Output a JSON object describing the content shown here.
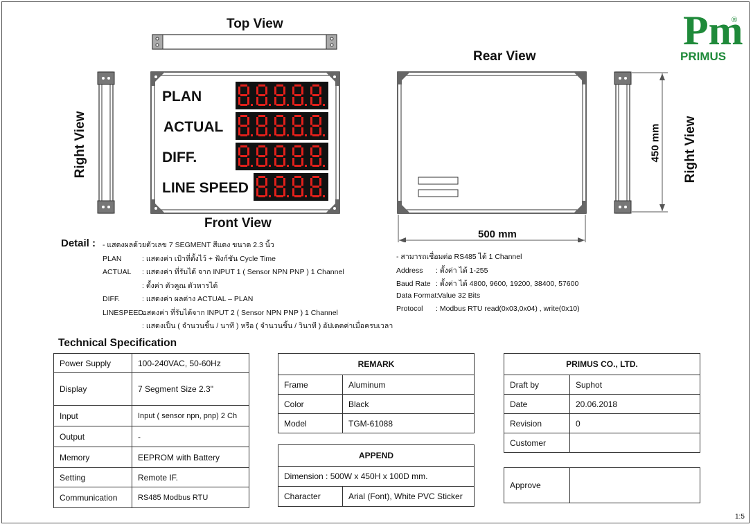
{
  "views": {
    "top": "Top View",
    "front": "Front View",
    "rear": "Rear View",
    "right_left": "Right View",
    "right_right": "Right View"
  },
  "board": {
    "rows": [
      {
        "label": "PLAN",
        "digits": 5
      },
      {
        "label": "ACTUAL",
        "digits": 5
      },
      {
        "label": "DIFF.",
        "digits": 5
      },
      {
        "label": "LINE SPEED",
        "digits": 4
      }
    ]
  },
  "dimensions": {
    "height": "450 mm",
    "width": "500 mm"
  },
  "detail": {
    "title": "Detail :",
    "left_lines": [
      {
        "key": "",
        "text": "- แสดงผลด้วยตัวเลข 7 SEGMENT สีแดง ขนาด 2.3 นิ้ว"
      },
      {
        "key": "PLAN",
        "text": ": แสดงค่า เป้าที่ตั้งไว้ + ฟังก์ชัน Cycle Time"
      },
      {
        "key": "ACTUAL",
        "text": ": แสดงค่า ที่รับได้ จาก INPUT 1 ( Sensor NPN PNP ) 1 Channel"
      },
      {
        "key": "",
        "text": ": ตั้งค่า ตัวคูณ ตัวหารได้"
      },
      {
        "key": "DIFF.",
        "text": ": แสดงค่า ผลต่าง ACTUAL – PLAN"
      },
      {
        "key": "LINESPEED:",
        "text": "แสดงค่า ที่รับได้จาก INPUT 2  ( Sensor NPN PNP ) 1 Channel"
      },
      {
        "key": "",
        "text": ": แสดงเป็น ( จำนวนชิ้น / นาที ) หรือ ( จำนวนชิ้น / วินาที ) อัปเดตค่าเมื่อครบเวลา"
      }
    ],
    "right_lines": [
      {
        "key": "",
        "text": "- สามารถเชื่อมต่อ RS485 ได้ 1 Channel"
      },
      {
        "key": "Address",
        "text": ": ตั้งค่า ได้ 1-255"
      },
      {
        "key": "Baud Rate",
        "text": ": ตั้งค่า ได้ 4800, 9600, 19200, 38400, 57600"
      },
      {
        "key": "Data Format:",
        "text": "Value 32 Bits"
      },
      {
        "key": "Protocol",
        "text": ": Modbus RTU read(0x03,0x04) , write(0x10)"
      }
    ]
  },
  "tech_spec": {
    "title": "Technical Specification",
    "rows": [
      [
        "Power Supply",
        "100-240VAC, 50-60Hz"
      ],
      [
        "Display",
        "7 Segment Size 2.3\""
      ],
      [
        "Input",
        "Input ( sensor npn, pnp) 2 Ch"
      ],
      [
        "Output",
        "-"
      ],
      [
        "Memory",
        "EEPROM with Battery"
      ],
      [
        "Setting",
        "Remote IF."
      ],
      [
        "Communication",
        "RS485 Modbus RTU"
      ]
    ]
  },
  "remark": {
    "title": "REMARK",
    "rows": [
      [
        "Frame",
        "Aluminum"
      ],
      [
        "Color",
        "Black"
      ],
      [
        "Model",
        "TGM-61088"
      ]
    ]
  },
  "append": {
    "title": "APPEND",
    "dimension": "Dimension : 500W x 450H x 100D mm.",
    "character_label": "Character",
    "character_value": "Arial (Font), White PVC Sticker"
  },
  "company": {
    "title": "PRIMUS CO., LTD.",
    "rows": [
      [
        "Draft by",
        "Suphot"
      ],
      [
        "Date",
        "20.06.2018"
      ],
      [
        "Revision",
        "0"
      ],
      [
        "Customer",
        ""
      ]
    ],
    "approve": "Approve"
  },
  "logo": {
    "mark": "Pm",
    "registered": "®",
    "text": "PRIMUS",
    "color": "#1f8a3a"
  },
  "scale": "1:5"
}
